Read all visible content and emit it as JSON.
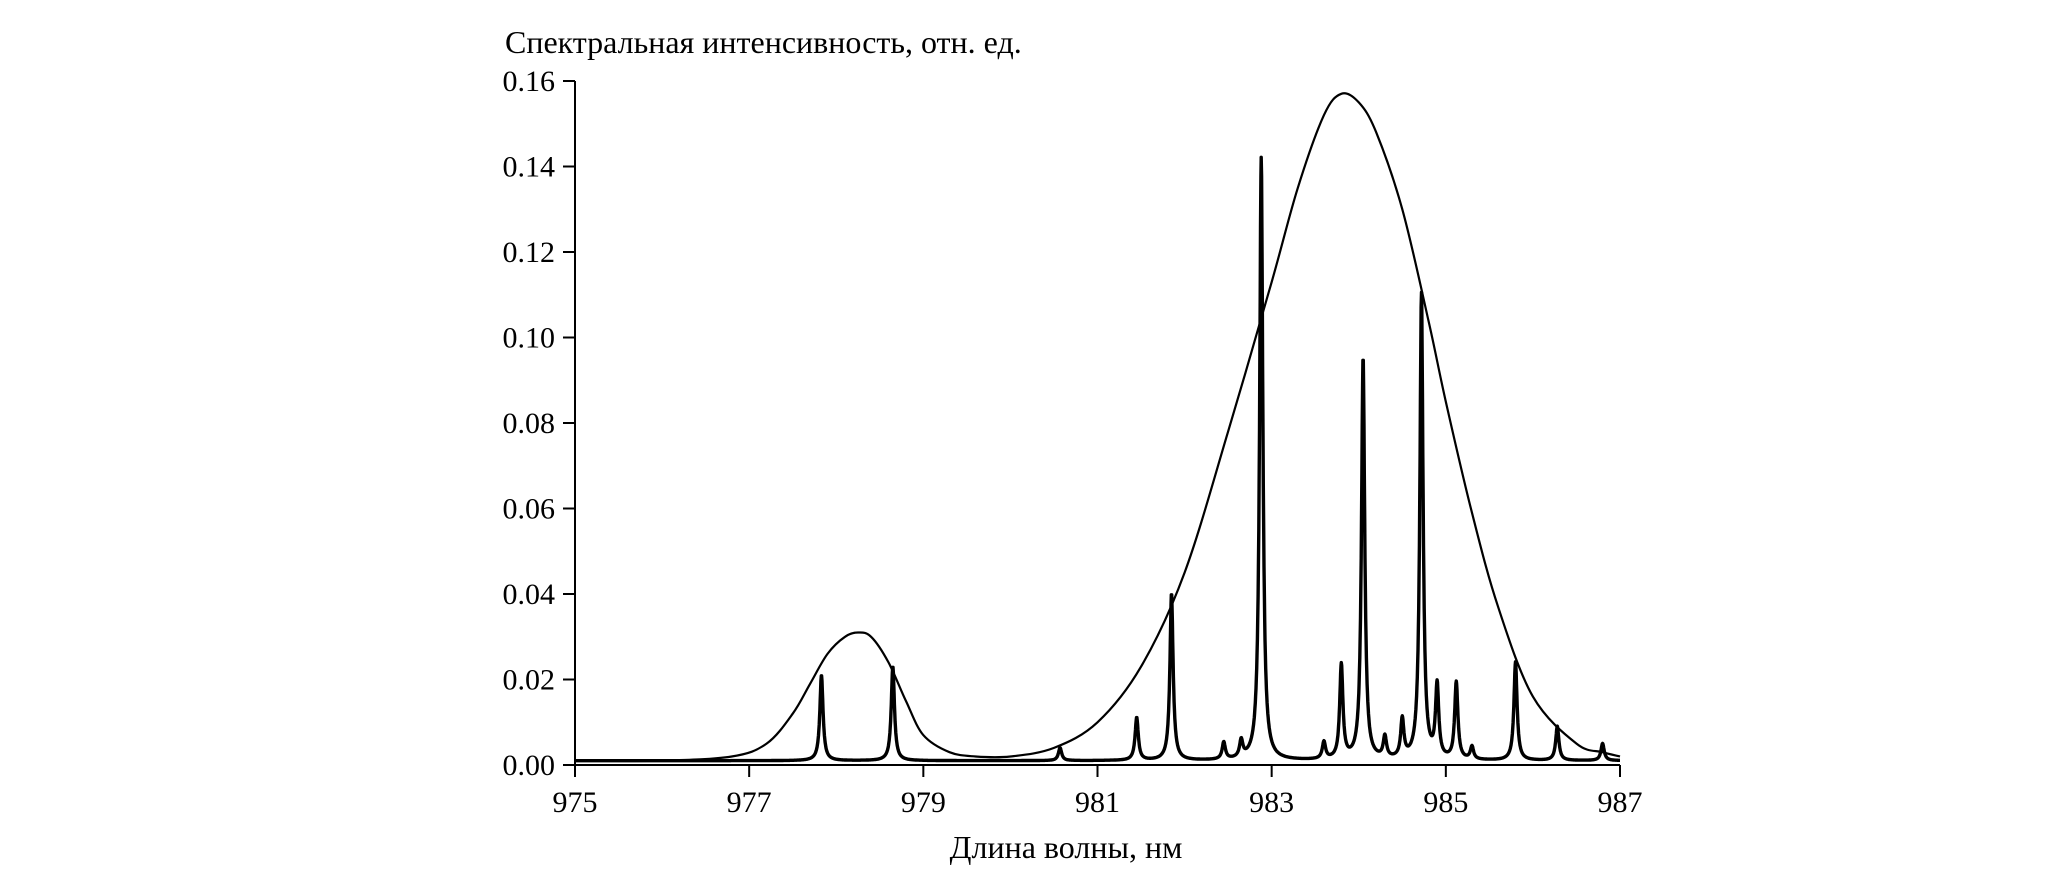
{
  "chart_data": {
    "type": "line",
    "title": "",
    "xlabel": "Длина волны, нм",
    "ylabel": "Спектральная интенсивность, отн. ед.",
    "xlim": [
      975,
      987
    ],
    "ylim": [
      0,
      0.16
    ],
    "x_ticks": [
      "975",
      "977",
      "979",
      "981",
      "983",
      "985",
      "987"
    ],
    "y_ticks": [
      "0.00",
      "0.02",
      "0.04",
      "0.06",
      "0.08",
      "0.10",
      "0.12",
      "0.14",
      "0.16"
    ],
    "grid": false,
    "legend": "none",
    "series": [
      {
        "kind": "envelope",
        "x": [
          975.0,
          976.0,
          976.8,
          977.2,
          977.5,
          977.7,
          977.9,
          978.1,
          978.25,
          978.4,
          978.6,
          978.8,
          979.0,
          979.3,
          979.6,
          980.0,
          980.5,
          981.0,
          981.5,
          982.0,
          982.5,
          983.0,
          983.3,
          983.6,
          983.8,
          984.0,
          984.2,
          984.5,
          984.8,
          985.0,
          985.3,
          985.6,
          986.0,
          986.5,
          986.8,
          987.0
        ],
        "y": [
          0.001,
          0.001,
          0.002,
          0.005,
          0.012,
          0.019,
          0.026,
          0.03,
          0.031,
          0.03,
          0.024,
          0.015,
          0.007,
          0.003,
          0.002,
          0.002,
          0.004,
          0.01,
          0.023,
          0.045,
          0.078,
          0.113,
          0.135,
          0.152,
          0.157,
          0.155,
          0.148,
          0.13,
          0.104,
          0.085,
          0.059,
          0.037,
          0.016,
          0.005,
          0.003,
          0.002
        ]
      },
      {
        "kind": "spectrum",
        "baseline": 0.001,
        "peaks": [
          {
            "x": 977.83,
            "y": 0.021
          },
          {
            "x": 978.65,
            "y": 0.023
          },
          {
            "x": 980.57,
            "y": 0.004
          },
          {
            "x": 981.45,
            "y": 0.011
          },
          {
            "x": 981.85,
            "y": 0.04
          },
          {
            "x": 982.45,
            "y": 0.005
          },
          {
            "x": 982.65,
            "y": 0.005
          },
          {
            "x": 982.88,
            "y": 0.142
          },
          {
            "x": 983.6,
            "y": 0.005
          },
          {
            "x": 983.8,
            "y": 0.023
          },
          {
            "x": 984.05,
            "y": 0.095
          },
          {
            "x": 984.3,
            "y": 0.006
          },
          {
            "x": 984.5,
            "y": 0.01
          },
          {
            "x": 984.72,
            "y": 0.11
          },
          {
            "x": 984.9,
            "y": 0.018
          },
          {
            "x": 985.12,
            "y": 0.019
          },
          {
            "x": 985.3,
            "y": 0.004
          },
          {
            "x": 985.8,
            "y": 0.024
          },
          {
            "x": 986.28,
            "y": 0.009
          },
          {
            "x": 986.8,
            "y": 0.005
          }
        ]
      }
    ]
  }
}
